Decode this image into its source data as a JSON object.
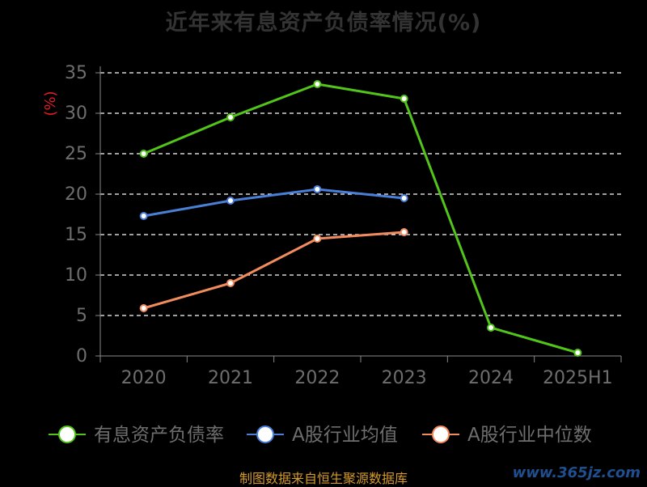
{
  "title": "近年来有息资产负债率情况(%)",
  "source_text": "制图数据来自恒生聚源数据库",
  "watermark": "www.365jz.com",
  "colors": {
    "background": "#000000",
    "axis": "#888888",
    "grid": "#ffffff",
    "tick_text": "#6e6e6e",
    "unit": "#e01b24"
  },
  "chart_data": {
    "type": "line",
    "title": "近年来有息资产负债率情况(%)",
    "ylabel": "(%)",
    "xlabel": "",
    "categories": [
      "2020",
      "2021",
      "2022",
      "2023",
      "2024",
      "2025H1"
    ],
    "ylim": [
      0,
      35
    ],
    "yticks": [
      0,
      5,
      10,
      15,
      20,
      25,
      30,
      35
    ],
    "grid": true,
    "legend_position": "bottom",
    "series": [
      {
        "name": "有息资产负债率",
        "color": "#52c41a",
        "values": [
          25.0,
          29.5,
          33.6,
          31.8,
          3.5,
          0.4
        ]
      },
      {
        "name": "A股行业均值",
        "color": "#4a7fd8",
        "values": [
          17.3,
          19.2,
          20.6,
          19.5,
          null,
          null
        ]
      },
      {
        "name": "A股行业中位数",
        "color": "#f28c5e",
        "values": [
          5.9,
          9.0,
          14.5,
          15.3,
          null,
          null
        ]
      }
    ]
  }
}
